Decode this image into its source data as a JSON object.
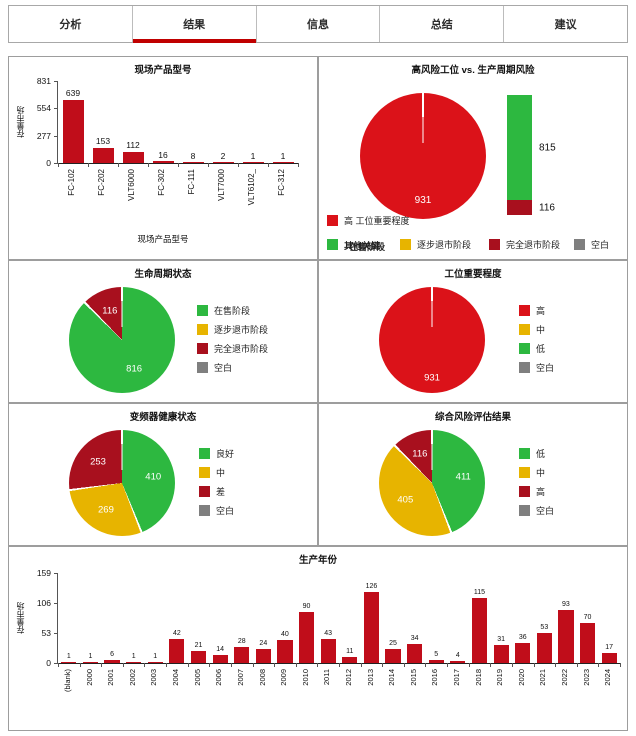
{
  "palette": {
    "accent": "#C00000",
    "barRed": "#C00D1A",
    "red": "#DB1219",
    "darkRed": "#A8101E",
    "green": "#2DB840",
    "yellow": "#E7B400",
    "gray": "#7F7F7F",
    "border": "#9D9D9D"
  },
  "tabs": [
    {
      "label": "分析",
      "active": false
    },
    {
      "label": "结果",
      "active": true
    },
    {
      "label": "信息",
      "active": false
    },
    {
      "label": "总结",
      "active": false
    },
    {
      "label": "建议",
      "active": false
    }
  ],
  "chart_data": [
    {
      "id": "product_models",
      "type": "bar",
      "title": "现场产品型号",
      "ylabel": "存量市场",
      "xlabel": "现场产品型号",
      "yticks": [
        0,
        277,
        554,
        831
      ],
      "ylim": [
        0,
        831
      ],
      "categories": [
        "FC-102",
        "FC-202",
        "VLT6000",
        "FC-302",
        "FC-111",
        "VLT7000",
        "VLT6102_",
        "FC-312"
      ],
      "values": [
        639,
        153,
        112,
        16,
        8,
        2,
        1,
        1
      ],
      "bar_color": "barRed"
    },
    {
      "id": "high_risk_vs_lifecycle",
      "type": "pie+stacked-bar",
      "title": "高风险工位 vs. 生产周期风险",
      "pie_slices": [
        {
          "label": "高",
          "value": 931,
          "color": "red"
        }
      ],
      "bar_segments": [
        {
          "label": "在售阶段",
          "value": 815,
          "color": "green"
        },
        {
          "label": "完全退市阶段",
          "value": 116,
          "color": "darkRed"
        }
      ],
      "legend_rows": [
        [
          {
            "color": "red",
            "label": "高 工位重要程度"
          }
        ],
        [
          {
            "color": "green",
            "label": "其他关键",
            "label_overlap": "在售阶段"
          },
          {
            "color": "yellow",
            "label": "逐步退市阶段",
            "collide": true
          },
          {
            "color": "darkRed",
            "label": "完全退市阶段"
          },
          {
            "color": "gray",
            "label": "空白"
          }
        ]
      ]
    },
    {
      "id": "lifecycle_status",
      "type": "pie",
      "title": "生命周期状态",
      "slices": [
        {
          "label": "在售阶段",
          "value": 816,
          "color": "green"
        },
        {
          "label": "完全退市阶段",
          "value": 116,
          "color": "darkRed"
        }
      ],
      "legend": [
        {
          "label": "在售阶段",
          "color": "green"
        },
        {
          "label": "逐步退市阶段",
          "color": "yellow"
        },
        {
          "label": "完全退市阶段",
          "color": "darkRed"
        },
        {
          "label": "空白",
          "color": "gray"
        }
      ]
    },
    {
      "id": "station_importance",
      "type": "pie",
      "title": "工位重要程度",
      "slices": [
        {
          "label": "高",
          "value": 931,
          "color": "red"
        }
      ],
      "legend": [
        {
          "label": "高",
          "color": "red"
        },
        {
          "label": "中",
          "color": "yellow"
        },
        {
          "label": "低",
          "color": "green"
        },
        {
          "label": "空白",
          "color": "gray"
        }
      ]
    },
    {
      "id": "inverter_health",
      "type": "pie",
      "title": "变频器健康状态",
      "slices": [
        {
          "label": "良好",
          "value": 410,
          "color": "green"
        },
        {
          "label": "中",
          "value": 269,
          "color": "yellow"
        },
        {
          "label": "差",
          "value": 253,
          "color": "darkRed"
        }
      ],
      "legend": [
        {
          "label": "良好",
          "color": "green"
        },
        {
          "label": "中",
          "color": "yellow"
        },
        {
          "label": "差",
          "color": "darkRed"
        },
        {
          "label": "空白",
          "color": "gray"
        }
      ]
    },
    {
      "id": "overall_risk",
      "type": "pie",
      "title": "综合风险评估结果",
      "slices": [
        {
          "label": "低",
          "value": 411,
          "color": "green"
        },
        {
          "label": "中",
          "value": 405,
          "color": "yellow"
        },
        {
          "label": "高",
          "value": 116,
          "color": "darkRed"
        }
      ],
      "legend": [
        {
          "label": "低",
          "color": "green"
        },
        {
          "label": "中",
          "color": "yellow"
        },
        {
          "label": "高",
          "color": "darkRed"
        },
        {
          "label": "空白",
          "color": "gray"
        }
      ]
    },
    {
      "id": "production_year",
      "type": "bar",
      "title": "生产年份",
      "ylabel": "存量市场",
      "yticks": [
        0,
        53,
        106,
        159
      ],
      "ylim": [
        0,
        159
      ],
      "categories": [
        "(blank)",
        "2000",
        "2001",
        "2002",
        "2003",
        "2004",
        "2005",
        "2006",
        "2007",
        "2008",
        "2009",
        "2010",
        "2011",
        "2012",
        "2013",
        "2014",
        "2015",
        "2016",
        "2017",
        "2018",
        "2019",
        "2020",
        "2021",
        "2022",
        "2023",
        "2024"
      ],
      "values": [
        1,
        1,
        6,
        1,
        1,
        42,
        21,
        14,
        28,
        24,
        40,
        90,
        43,
        11,
        126,
        25,
        34,
        5,
        4,
        115,
        31,
        36,
        53,
        93,
        70,
        17
      ],
      "bar_color": "barRed"
    }
  ]
}
